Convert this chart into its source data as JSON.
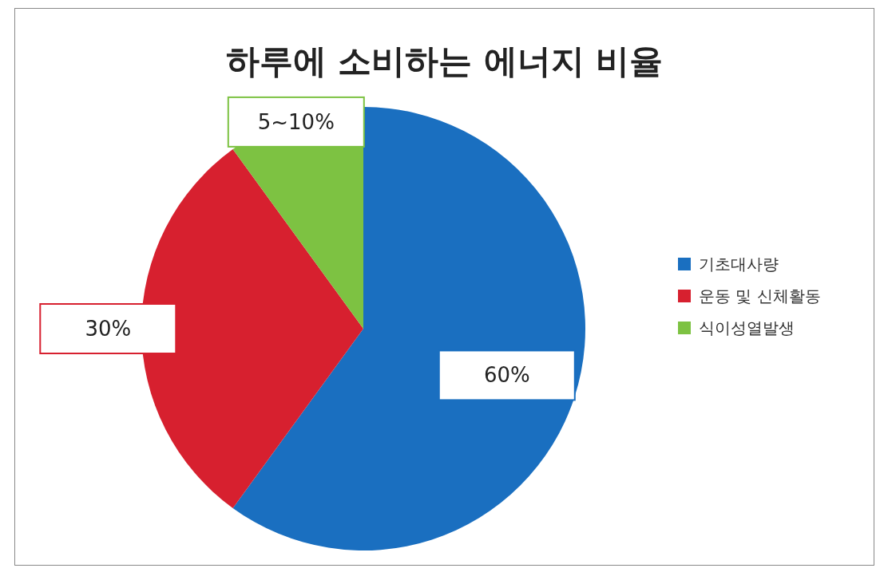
{
  "chart_data": {
    "type": "pie",
    "title": "하루에 소비하는 에너지 비율",
    "categories": [
      "기초대사량",
      "운동 및 신체활동",
      "식이성열발생"
    ],
    "values": [
      60,
      30,
      10
    ],
    "value_labels": [
      "60%",
      "30%",
      "5~10%"
    ],
    "colors": [
      "#1a6fc0",
      "#d7202f",
      "#7dc242"
    ],
    "legend": "right"
  }
}
